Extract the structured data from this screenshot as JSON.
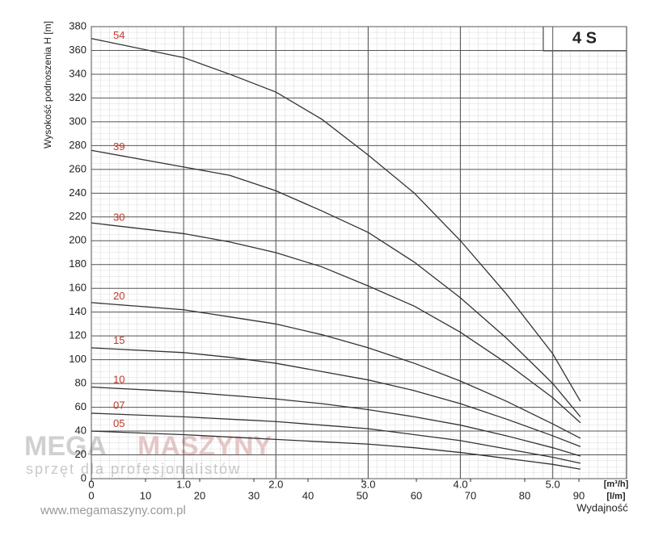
{
  "chart_data": {
    "type": "line",
    "title": "4 S",
    "y_label": "Wysokość podnoszenia H [m]",
    "x_label": "[m³/h]",
    "x2_label": "[l/m]",
    "x_title": "Wydajność",
    "x": [
      0,
      1,
      1.5,
      2,
      2.5,
      3,
      3.5,
      4,
      4.5,
      5,
      5.3
    ],
    "series": [
      {
        "name": "54",
        "color": "#333333",
        "values": [
          370,
          354,
          340,
          325,
          302,
          272,
          240,
          200,
          155,
          105,
          65
        ]
      },
      {
        "name": "39",
        "color": "#333333",
        "values": [
          276,
          262,
          255,
          242,
          225,
          207,
          182,
          152,
          118,
          80,
          52
        ]
      },
      {
        "name": "30",
        "color": "#333333",
        "values": [
          215,
          206,
          199,
          190,
          178,
          162,
          145,
          123,
          97,
          68,
          47
        ]
      },
      {
        "name": "20",
        "color": "#333333",
        "values": [
          148,
          142,
          136,
          130,
          121,
          110,
          97,
          82,
          65,
          46,
          34
        ]
      },
      {
        "name": "15",
        "color": "#333333",
        "values": [
          110,
          106,
          102,
          97,
          90,
          83,
          74,
          63,
          50,
          36,
          27
        ]
      },
      {
        "name": "10",
        "color": "#333333",
        "values": [
          77,
          73,
          70,
          67,
          63,
          58,
          52,
          45,
          36,
          26,
          19
        ]
      },
      {
        "name": "07",
        "color": "#333333",
        "values": [
          55,
          52,
          50,
          48,
          45,
          42,
          37,
          32,
          25,
          18,
          13
        ]
      },
      {
        "name": "05",
        "color": "#333333",
        "values": [
          40,
          37,
          35,
          33,
          31,
          29,
          26,
          22,
          17,
          12,
          8
        ]
      }
    ],
    "label_color": "#c0392b",
    "xlim": [
      0,
      5.8
    ],
    "xticks": [
      0,
      {
        "value": 1,
        "label": "1.0"
      },
      {
        "value": 2,
        "label": "2.0"
      },
      {
        "value": 3,
        "label": "3.0"
      },
      {
        "value": 4,
        "label": "4.0"
      },
      {
        "value": 5,
        "label": "5.0"
      }
    ],
    "x2lim": [
      0,
      98.8
    ],
    "x2ticks": [
      0,
      10,
      20,
      30,
      40,
      50,
      60,
      70,
      80,
      90
    ],
    "ylim": [
      0,
      380
    ],
    "yticks": [
      0,
      20,
      40,
      60,
      80,
      100,
      120,
      140,
      160,
      180,
      200,
      220,
      240,
      260,
      280,
      300,
      320,
      340,
      360,
      380
    ],
    "grid": true
  },
  "watermark": {
    "brand_a": "MEGA",
    "brand_b": "MASZYNY",
    "tagline": "sprzęt dla profesjonalistów",
    "url": "www.megamaszyny.com.pl"
  }
}
